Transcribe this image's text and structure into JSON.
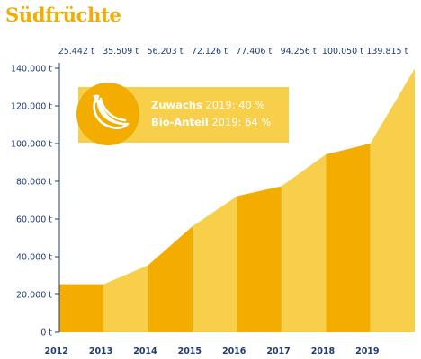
{
  "title": "Südfrüchte",
  "info": {
    "growth_label": "Zuwachs",
    "growth_value": "2019: 40 %",
    "organic_label": "Bio-Anteil",
    "organic_value": "2019: 64 %",
    "icon": "banana-icon"
  },
  "colors": {
    "dark": "#f2ad00",
    "light": "#f7cf4a",
    "text": "#1f3c72",
    "title": "#f2ad00"
  },
  "chart_data": {
    "type": "area",
    "x": [
      "2012",
      "2013",
      "2014",
      "2015",
      "2016",
      "2017",
      "2018",
      "2019"
    ],
    "series": [
      {
        "values": [
          25442,
          35509,
          56203,
          72126,
          77406,
          94256,
          100050,
          139815
        ]
      }
    ],
    "top_labels": [
      "25.442 t",
      "35.509 t",
      "56.203 t",
      "72.126 t",
      "77.406 t",
      "94.256 t",
      "100.050 t",
      "139.815 t"
    ],
    "yticks": [
      {
        "value": 0,
        "label": "0 t"
      },
      {
        "value": 20000,
        "label": "20.000 t"
      },
      {
        "value": 40000,
        "label": "40.000 t"
      },
      {
        "value": 60000,
        "label": "60.000 t"
      },
      {
        "value": 80000,
        "label": "80.000 t"
      },
      {
        "value": 100000,
        "label": "100.000 t"
      },
      {
        "value": 120000,
        "label": "120.000 t"
      },
      {
        "value": 140000,
        "label": "140.000 t"
      }
    ],
    "ylim": [
      0,
      140000
    ],
    "grid": false
  }
}
